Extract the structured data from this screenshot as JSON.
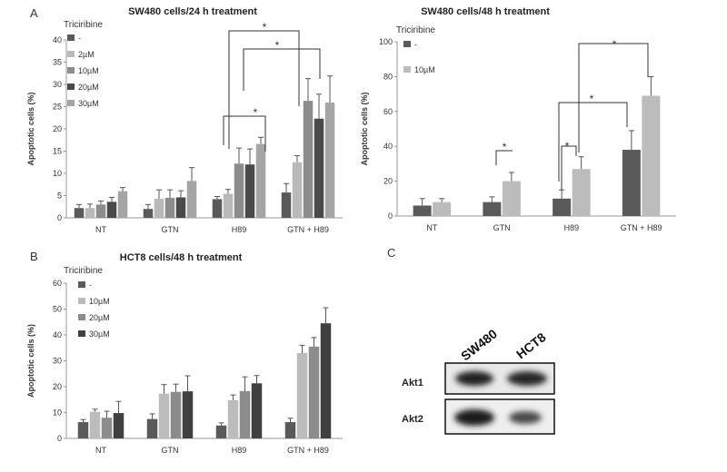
{
  "panel_letters": [
    "A",
    "B",
    "C"
  ],
  "chart_data": [
    {
      "id": "sw480_24h",
      "type": "bar",
      "title": "SW480 cells/24 h treatment",
      "ylabel": "Apoptotic cells (%)",
      "xlabel": "",
      "ylim": [
        0,
        40
      ],
      "yticks": [
        0,
        5,
        10,
        15,
        20,
        25,
        30,
        35,
        40
      ],
      "legend_title": "Triciribine",
      "legend_position": "top-left",
      "categories": [
        "NT",
        "GTN",
        "H89",
        "GTN + H89"
      ],
      "series": [
        {
          "name": "-",
          "color": "#5a5a5a",
          "values": [
            2.2,
            2.0,
            4.2,
            5.7
          ],
          "errors": [
            0.8,
            1.0,
            0.6,
            2.0
          ]
        },
        {
          "name": "2µM",
          "color": "#b9b9b9",
          "values": [
            2.2,
            4.3,
            5.4,
            12.5
          ],
          "errors": [
            0.9,
            2.0,
            1.0,
            1.5
          ]
        },
        {
          "name": "10µM",
          "color": "#8c8c8c",
          "values": [
            3.0,
            4.5,
            12.2,
            26.3
          ],
          "errors": [
            0.8,
            1.8,
            3.5,
            5.0
          ]
        },
        {
          "name": "20µM",
          "color": "#4a4a4a",
          "values": [
            3.6,
            4.6,
            12.0,
            22.3
          ],
          "errors": [
            1.0,
            1.5,
            3.5,
            5.5
          ]
        },
        {
          "name": "30µM",
          "color": "#a5a5a5",
          "values": [
            6.0,
            8.3,
            16.6,
            25.9
          ],
          "errors": [
            0.8,
            3.0,
            1.5,
            6.0
          ]
        }
      ],
      "significance": [
        "*",
        "*",
        "*"
      ]
    },
    {
      "id": "sw480_48h",
      "type": "bar",
      "title": "SW480 cells/48 h treatment",
      "ylabel": "Apoptotic cells (%)",
      "xlabel": "",
      "ylim": [
        0,
        100
      ],
      "yticks": [
        0,
        20,
        40,
        60,
        80,
        100
      ],
      "legend_title": "Triciribine",
      "legend_position": "top-left",
      "categories": [
        "NT",
        "GTN",
        "H89",
        "GTN + H89"
      ],
      "series": [
        {
          "name": "-",
          "color": "#5a5a5a",
          "values": [
            6,
            8,
            10,
            38
          ],
          "errors": [
            4,
            3,
            5,
            11
          ]
        },
        {
          "name": "10µM",
          "color": "#bcbcbc",
          "values": [
            8,
            20,
            27,
            69
          ],
          "errors": [
            2,
            5,
            7,
            11
          ]
        }
      ],
      "significance": [
        "*",
        "*",
        "*",
        "*"
      ]
    },
    {
      "id": "hct8_48h",
      "type": "bar",
      "title": "HCT8 cells/48 h treatment",
      "ylabel": "Apoptotic cells (%)",
      "xlabel": "",
      "ylim": [
        0,
        60
      ],
      "yticks": [
        0,
        10,
        20,
        30,
        40,
        50,
        60
      ],
      "legend_title": "Triciribine",
      "legend_position": "top-left",
      "categories": [
        "NT",
        "GTN",
        "H89",
        "GTN + H89"
      ],
      "series": [
        {
          "name": "-",
          "color": "#5a5a5a",
          "values": [
            6.3,
            7.5,
            5.0,
            6.3
          ],
          "errors": [
            1.0,
            2.0,
            1.0,
            1.5
          ]
        },
        {
          "name": "10µM",
          "color": "#bcbcbc",
          "values": [
            10.3,
            17.3,
            14.8,
            33.0
          ],
          "errors": [
            1.0,
            3.5,
            2.0,
            3.0
          ]
        },
        {
          "name": "20µM",
          "color": "#8c8c8c",
          "values": [
            8.0,
            18.0,
            18.3,
            35.5
          ],
          "errors": [
            2.5,
            3.0,
            5.5,
            3.5
          ]
        },
        {
          "name": "30µM",
          "color": "#404040",
          "values": [
            9.8,
            18.2,
            21.3,
            44.5
          ],
          "errors": [
            4.5,
            6.0,
            3.0,
            6.0
          ]
        }
      ]
    }
  ],
  "blot": {
    "lanes": [
      "SW480",
      "HCT8"
    ],
    "rows": [
      "Akt1",
      "Akt2"
    ]
  }
}
